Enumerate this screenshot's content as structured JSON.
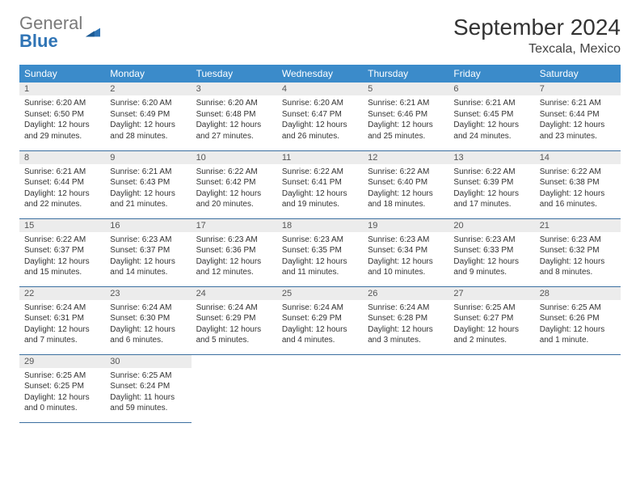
{
  "brand": {
    "word1": "General",
    "word2": "Blue"
  },
  "title": "September 2024",
  "location": "Texcala, Mexico",
  "weekdays": [
    "Sunday",
    "Monday",
    "Tuesday",
    "Wednesday",
    "Thursday",
    "Friday",
    "Saturday"
  ],
  "colors": {
    "header_bg": "#3b8bca",
    "header_text": "#ffffff",
    "daynum_bg": "#ececec",
    "row_divider": "#3b6fa0",
    "logo_gray": "#7a7a7a",
    "logo_blue": "#2f74b5"
  },
  "days": [
    {
      "n": "1",
      "sunrise": "Sunrise: 6:20 AM",
      "sunset": "Sunset: 6:50 PM",
      "day1": "Daylight: 12 hours",
      "day2": "and 29 minutes."
    },
    {
      "n": "2",
      "sunrise": "Sunrise: 6:20 AM",
      "sunset": "Sunset: 6:49 PM",
      "day1": "Daylight: 12 hours",
      "day2": "and 28 minutes."
    },
    {
      "n": "3",
      "sunrise": "Sunrise: 6:20 AM",
      "sunset": "Sunset: 6:48 PM",
      "day1": "Daylight: 12 hours",
      "day2": "and 27 minutes."
    },
    {
      "n": "4",
      "sunrise": "Sunrise: 6:20 AM",
      "sunset": "Sunset: 6:47 PM",
      "day1": "Daylight: 12 hours",
      "day2": "and 26 minutes."
    },
    {
      "n": "5",
      "sunrise": "Sunrise: 6:21 AM",
      "sunset": "Sunset: 6:46 PM",
      "day1": "Daylight: 12 hours",
      "day2": "and 25 minutes."
    },
    {
      "n": "6",
      "sunrise": "Sunrise: 6:21 AM",
      "sunset": "Sunset: 6:45 PM",
      "day1": "Daylight: 12 hours",
      "day2": "and 24 minutes."
    },
    {
      "n": "7",
      "sunrise": "Sunrise: 6:21 AM",
      "sunset": "Sunset: 6:44 PM",
      "day1": "Daylight: 12 hours",
      "day2": "and 23 minutes."
    },
    {
      "n": "8",
      "sunrise": "Sunrise: 6:21 AM",
      "sunset": "Sunset: 6:44 PM",
      "day1": "Daylight: 12 hours",
      "day2": "and 22 minutes."
    },
    {
      "n": "9",
      "sunrise": "Sunrise: 6:21 AM",
      "sunset": "Sunset: 6:43 PM",
      "day1": "Daylight: 12 hours",
      "day2": "and 21 minutes."
    },
    {
      "n": "10",
      "sunrise": "Sunrise: 6:22 AM",
      "sunset": "Sunset: 6:42 PM",
      "day1": "Daylight: 12 hours",
      "day2": "and 20 minutes."
    },
    {
      "n": "11",
      "sunrise": "Sunrise: 6:22 AM",
      "sunset": "Sunset: 6:41 PM",
      "day1": "Daylight: 12 hours",
      "day2": "and 19 minutes."
    },
    {
      "n": "12",
      "sunrise": "Sunrise: 6:22 AM",
      "sunset": "Sunset: 6:40 PM",
      "day1": "Daylight: 12 hours",
      "day2": "and 18 minutes."
    },
    {
      "n": "13",
      "sunrise": "Sunrise: 6:22 AM",
      "sunset": "Sunset: 6:39 PM",
      "day1": "Daylight: 12 hours",
      "day2": "and 17 minutes."
    },
    {
      "n": "14",
      "sunrise": "Sunrise: 6:22 AM",
      "sunset": "Sunset: 6:38 PM",
      "day1": "Daylight: 12 hours",
      "day2": "and 16 minutes."
    },
    {
      "n": "15",
      "sunrise": "Sunrise: 6:22 AM",
      "sunset": "Sunset: 6:37 PM",
      "day1": "Daylight: 12 hours",
      "day2": "and 15 minutes."
    },
    {
      "n": "16",
      "sunrise": "Sunrise: 6:23 AM",
      "sunset": "Sunset: 6:37 PM",
      "day1": "Daylight: 12 hours",
      "day2": "and 14 minutes."
    },
    {
      "n": "17",
      "sunrise": "Sunrise: 6:23 AM",
      "sunset": "Sunset: 6:36 PM",
      "day1": "Daylight: 12 hours",
      "day2": "and 12 minutes."
    },
    {
      "n": "18",
      "sunrise": "Sunrise: 6:23 AM",
      "sunset": "Sunset: 6:35 PM",
      "day1": "Daylight: 12 hours",
      "day2": "and 11 minutes."
    },
    {
      "n": "19",
      "sunrise": "Sunrise: 6:23 AM",
      "sunset": "Sunset: 6:34 PM",
      "day1": "Daylight: 12 hours",
      "day2": "and 10 minutes."
    },
    {
      "n": "20",
      "sunrise": "Sunrise: 6:23 AM",
      "sunset": "Sunset: 6:33 PM",
      "day1": "Daylight: 12 hours",
      "day2": "and 9 minutes."
    },
    {
      "n": "21",
      "sunrise": "Sunrise: 6:23 AM",
      "sunset": "Sunset: 6:32 PM",
      "day1": "Daylight: 12 hours",
      "day2": "and 8 minutes."
    },
    {
      "n": "22",
      "sunrise": "Sunrise: 6:24 AM",
      "sunset": "Sunset: 6:31 PM",
      "day1": "Daylight: 12 hours",
      "day2": "and 7 minutes."
    },
    {
      "n": "23",
      "sunrise": "Sunrise: 6:24 AM",
      "sunset": "Sunset: 6:30 PM",
      "day1": "Daylight: 12 hours",
      "day2": "and 6 minutes."
    },
    {
      "n": "24",
      "sunrise": "Sunrise: 6:24 AM",
      "sunset": "Sunset: 6:29 PM",
      "day1": "Daylight: 12 hours",
      "day2": "and 5 minutes."
    },
    {
      "n": "25",
      "sunrise": "Sunrise: 6:24 AM",
      "sunset": "Sunset: 6:29 PM",
      "day1": "Daylight: 12 hours",
      "day2": "and 4 minutes."
    },
    {
      "n": "26",
      "sunrise": "Sunrise: 6:24 AM",
      "sunset": "Sunset: 6:28 PM",
      "day1": "Daylight: 12 hours",
      "day2": "and 3 minutes."
    },
    {
      "n": "27",
      "sunrise": "Sunrise: 6:25 AM",
      "sunset": "Sunset: 6:27 PM",
      "day1": "Daylight: 12 hours",
      "day2": "and 2 minutes."
    },
    {
      "n": "28",
      "sunrise": "Sunrise: 6:25 AM",
      "sunset": "Sunset: 6:26 PM",
      "day1": "Daylight: 12 hours",
      "day2": "and 1 minute."
    },
    {
      "n": "29",
      "sunrise": "Sunrise: 6:25 AM",
      "sunset": "Sunset: 6:25 PM",
      "day1": "Daylight: 12 hours",
      "day2": "and 0 minutes."
    },
    {
      "n": "30",
      "sunrise": "Sunrise: 6:25 AM",
      "sunset": "Sunset: 6:24 PM",
      "day1": "Daylight: 11 hours",
      "day2": "and 59 minutes."
    }
  ]
}
